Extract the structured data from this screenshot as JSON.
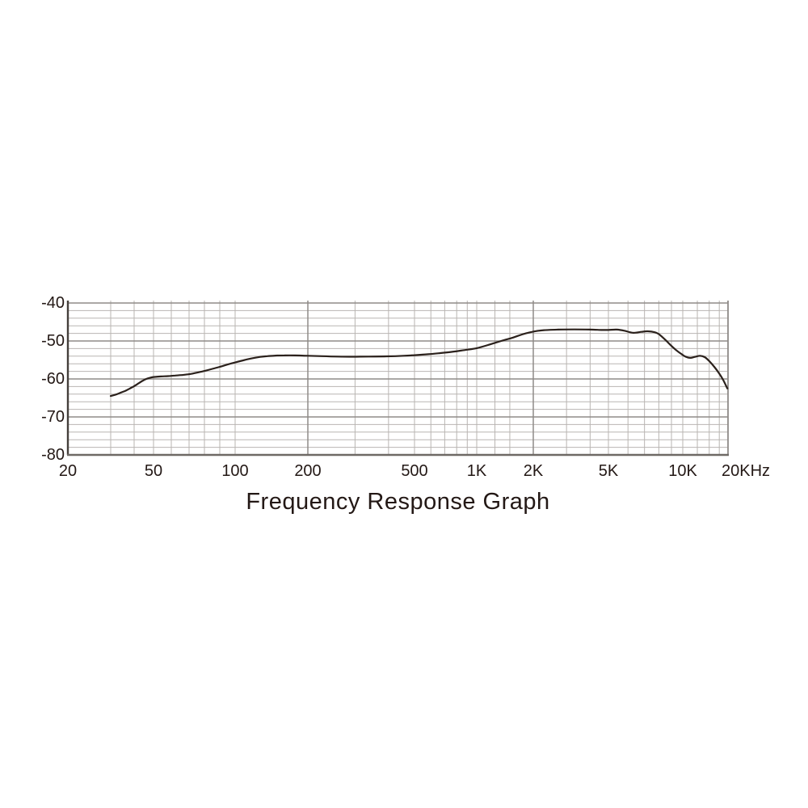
{
  "chart_data": {
    "type": "line",
    "title": "Frequency Response Graph",
    "x_axis": {
      "scale": "log",
      "range_hz": [
        20,
        20000
      ],
      "tick_labels": [
        {
          "f": 20,
          "label": "20"
        },
        {
          "f": 50,
          "label": "50"
        },
        {
          "f": 100,
          "label": "100"
        },
        {
          "f": 200,
          "label": "200"
        },
        {
          "f": 500,
          "label": "500"
        },
        {
          "f": 1000,
          "label": "1K"
        },
        {
          "f": 2000,
          "label": "2K"
        },
        {
          "f": 5000,
          "label": "5K"
        },
        {
          "f": 10000,
          "label": "10K"
        },
        {
          "f": 20000,
          "label": "20KHz"
        }
      ],
      "minor_grid_hz": [
        30,
        40,
        50,
        60,
        70,
        80,
        90,
        100,
        300,
        400,
        500,
        600,
        700,
        800,
        900,
        1000,
        1250,
        1500,
        3000,
        4000,
        5000,
        6000,
        7000,
        8000,
        9000,
        10000,
        12500,
        15000,
        17500
      ],
      "major_grid_hz": [
        200,
        2000
      ]
    },
    "y_axis": {
      "range_db": [
        -80,
        -40
      ],
      "major_step_db": 10,
      "minor_step_db": 2,
      "tick_labels": [
        {
          "db": -40,
          "label": "-40"
        },
        {
          "db": -50,
          "label": "-50"
        },
        {
          "db": -60,
          "label": "-60"
        },
        {
          "db": -70,
          "label": "-70"
        },
        {
          "db": -80,
          "label": "-80"
        }
      ]
    },
    "series": [
      {
        "name": "frequency-response",
        "points_hz_db": [
          [
            30,
            -64.5
          ],
          [
            32,
            -64.1
          ],
          [
            34,
            -63.6
          ],
          [
            36,
            -63.1
          ],
          [
            38,
            -62.5
          ],
          [
            40,
            -61.9
          ],
          [
            42,
            -61.2
          ],
          [
            44,
            -60.5
          ],
          [
            46,
            -60.0
          ],
          [
            48,
            -59.7
          ],
          [
            50,
            -59.5
          ],
          [
            54,
            -59.35
          ],
          [
            58,
            -59.25
          ],
          [
            62,
            -59.1
          ],
          [
            66,
            -58.95
          ],
          [
            70,
            -58.75
          ],
          [
            75,
            -58.35
          ],
          [
            80,
            -57.9
          ],
          [
            85,
            -57.35
          ],
          [
            90,
            -56.8
          ],
          [
            95,
            -56.2
          ],
          [
            100,
            -55.65
          ],
          [
            108,
            -55.1
          ],
          [
            117,
            -54.6
          ],
          [
            127,
            -54.2
          ],
          [
            136,
            -54.0
          ],
          [
            147,
            -53.85
          ],
          [
            160,
            -53.8
          ],
          [
            177,
            -53.8
          ],
          [
            200,
            -53.9
          ],
          [
            226,
            -54.0
          ],
          [
            257,
            -54.1
          ],
          [
            294,
            -54.15
          ],
          [
            337,
            -54.1
          ],
          [
            394,
            -54.05
          ],
          [
            456,
            -53.9
          ],
          [
            500,
            -53.75
          ],
          [
            582,
            -53.5
          ],
          [
            666,
            -53.2
          ],
          [
            762,
            -52.85
          ],
          [
            872,
            -52.4
          ],
          [
            1000,
            -51.9
          ],
          [
            1160,
            -51.0
          ],
          [
            1350,
            -50.0
          ],
          [
            1560,
            -49.1
          ],
          [
            1740,
            -48.3
          ],
          [
            1930,
            -47.7
          ],
          [
            2100,
            -47.35
          ],
          [
            2280,
            -47.15
          ],
          [
            2700,
            -47.0
          ],
          [
            3300,
            -46.95
          ],
          [
            4000,
            -47.0
          ],
          [
            4600,
            -47.1
          ],
          [
            5000,
            -47.1
          ],
          [
            5400,
            -47.0
          ],
          [
            5800,
            -47.3
          ],
          [
            6300,
            -47.85
          ],
          [
            6800,
            -47.6
          ],
          [
            7200,
            -47.45
          ],
          [
            7700,
            -47.7
          ],
          [
            8000,
            -48.2
          ],
          [
            8500,
            -49.7
          ],
          [
            8900,
            -51.0
          ],
          [
            9400,
            -52.4
          ],
          [
            9900,
            -53.5
          ],
          [
            10400,
            -54.1
          ],
          [
            11200,
            -54.45
          ],
          [
            12000,
            -54.2
          ],
          [
            13000,
            -53.9
          ],
          [
            14000,
            -54.25
          ],
          [
            15000,
            -55.3
          ],
          [
            16200,
            -56.8
          ],
          [
            17500,
            -58.6
          ],
          [
            18600,
            -60.3
          ],
          [
            19800,
            -62.5
          ]
        ]
      }
    ],
    "colors": {
      "curve": "#2b211c",
      "grid_minor": "#b9b5b2",
      "grid_major": "#8f8b88",
      "axis_left": "#45403c",
      "axis_bottom": "#6e6965",
      "text": "#231815",
      "background": "#ffffff"
    }
  }
}
